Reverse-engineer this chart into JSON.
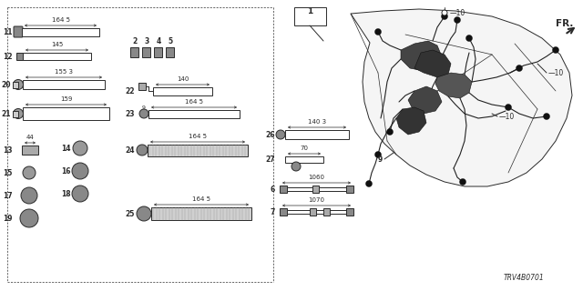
{
  "bg_color": "#ffffff",
  "diagram_id": "TRV4B0701",
  "gray": "#2a2a2a",
  "light_gray": "#aaaaaa",
  "mid_gray": "#777777"
}
